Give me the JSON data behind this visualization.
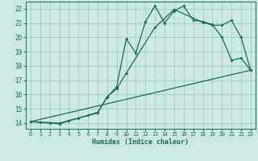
{
  "title": "",
  "xlabel": "Humidex (Indice chaleur)",
  "bg_color": "#cce8e0",
  "grid_color": "#9ecfc4",
  "line_color": "#1a6b5a",
  "xlim": [
    -0.5,
    23.5
  ],
  "ylim": [
    13.6,
    22.5
  ],
  "xticks": [
    0,
    1,
    2,
    3,
    4,
    5,
    6,
    7,
    8,
    9,
    10,
    11,
    12,
    13,
    14,
    15,
    16,
    17,
    18,
    19,
    20,
    21,
    22,
    23
  ],
  "yticks": [
    14,
    15,
    16,
    17,
    18,
    19,
    20,
    21,
    22
  ],
  "series1_x": [
    0,
    1,
    2,
    3,
    4,
    5,
    6,
    7,
    8,
    9,
    10,
    11,
    12,
    13,
    14,
    15,
    16,
    17,
    18,
    19,
    20,
    21,
    22,
    23
  ],
  "series1_y": [
    14.1,
    14.05,
    14.0,
    13.95,
    14.15,
    14.35,
    14.55,
    14.75,
    15.8,
    16.55,
    19.9,
    18.9,
    21.1,
    22.2,
    21.0,
    21.85,
    22.2,
    21.2,
    21.1,
    20.9,
    20.0,
    18.4,
    18.55,
    17.7
  ],
  "series2_x": [
    0,
    3,
    7,
    8,
    9,
    10,
    13,
    15,
    18,
    19,
    20,
    21,
    22,
    23
  ],
  "series2_y": [
    14.1,
    14.0,
    14.7,
    15.85,
    16.4,
    17.5,
    20.7,
    21.95,
    21.05,
    20.85,
    20.85,
    21.2,
    20.0,
    17.7
  ],
  "series3_x": [
    0,
    23
  ],
  "series3_y": [
    14.1,
    17.7
  ]
}
